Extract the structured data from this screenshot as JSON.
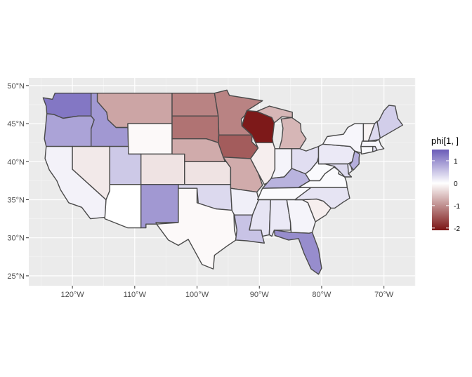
{
  "chart_data": {
    "type": "choropleth",
    "title": "",
    "xlabel": "",
    "ylabel": "",
    "x_ticks": [
      "120°W",
      "110°W",
      "100°W",
      "90°W",
      "80°W",
      "70°W"
    ],
    "y_ticks": [
      "25°N",
      "30°N",
      "35°N",
      "40°N",
      "45°N",
      "50°N"
    ],
    "xlim": [
      -127,
      -65
    ],
    "ylim": [
      23.7,
      51
    ],
    "grid": true,
    "legend": {
      "title": "phi[1, ]",
      "position": "right",
      "range": [
        -2.1,
        1.5
      ],
      "breaks": [
        {
          "value": 1,
          "label": "1"
        },
        {
          "value": 0,
          "label": "0"
        },
        {
          "value": -1,
          "label": "-1"
        },
        {
          "value": -2,
          "label": "-2"
        }
      ],
      "low_color": "#7a1313",
      "mid_color": "#ffffff",
      "high_color": "#6a5cb8"
    },
    "states": [
      {
        "name": "Washington",
        "value": 1.25
      },
      {
        "name": "Oregon",
        "value": 0.85
      },
      {
        "name": "California",
        "value": 0.12
      },
      {
        "name": "Idaho",
        "value": 0.95
      },
      {
        "name": "Nevada",
        "value": -0.2
      },
      {
        "name": "Montana",
        "value": -0.8
      },
      {
        "name": "Wyoming",
        "value": -0.05
      },
      {
        "name": "Utah",
        "value": 0.5
      },
      {
        "name": "Arizona",
        "value": 0.0
      },
      {
        "name": "Colorado",
        "value": -0.25
      },
      {
        "name": "New Mexico",
        "value": 0.95
      },
      {
        "name": "North Dakota",
        "value": -1.1
      },
      {
        "name": "South Dakota",
        "value": -1.25
      },
      {
        "name": "Nebraska",
        "value": -0.75
      },
      {
        "name": "Kansas",
        "value": -0.25
      },
      {
        "name": "Oklahoma",
        "value": 0.35
      },
      {
        "name": "Texas",
        "value": -0.05
      },
      {
        "name": "Minnesota",
        "value": -1.1
      },
      {
        "name": "Iowa",
        "value": -1.45
      },
      {
        "name": "Missouri",
        "value": -0.75
      },
      {
        "name": "Arkansas",
        "value": 0.15
      },
      {
        "name": "Louisiana",
        "value": 0.55
      },
      {
        "name": "Wisconsin",
        "value": -2.05
      },
      {
        "name": "Illinois",
        "value": -0.15
      },
      {
        "name": "Michigan",
        "value": -0.65
      },
      {
        "name": "Indiana",
        "value": 0.1
      },
      {
        "name": "Ohio",
        "value": 0.3
      },
      {
        "name": "Kentucky",
        "value": 0.7
      },
      {
        "name": "Tennessee",
        "value": 0.05
      },
      {
        "name": "Mississippi",
        "value": 0.25
      },
      {
        "name": "Alabama",
        "value": 0.2
      },
      {
        "name": "Georgia",
        "value": 0.1
      },
      {
        "name": "Florida",
        "value": 1.05
      },
      {
        "name": "South Carolina",
        "value": -0.15
      },
      {
        "name": "North Carolina",
        "value": 0.25
      },
      {
        "name": "Virginia",
        "value": 0.05
      },
      {
        "name": "West Virginia",
        "value": 0.05
      },
      {
        "name": "Pennsylvania",
        "value": 0.2
      },
      {
        "name": "New York",
        "value": 0.08
      },
      {
        "name": "Maryland",
        "value": 0.35
      },
      {
        "name": "Delaware",
        "value": 0.2
      },
      {
        "name": "New Jersey",
        "value": 0.75
      },
      {
        "name": "Connecticut",
        "value": 0.05
      },
      {
        "name": "Rhode Island",
        "value": 0.3
      },
      {
        "name": "Massachusetts",
        "value": 0.1
      },
      {
        "name": "Vermont",
        "value": -0.1
      },
      {
        "name": "New Hampshire",
        "value": 0.35
      },
      {
        "name": "Maine",
        "value": 0.45
      }
    ]
  }
}
